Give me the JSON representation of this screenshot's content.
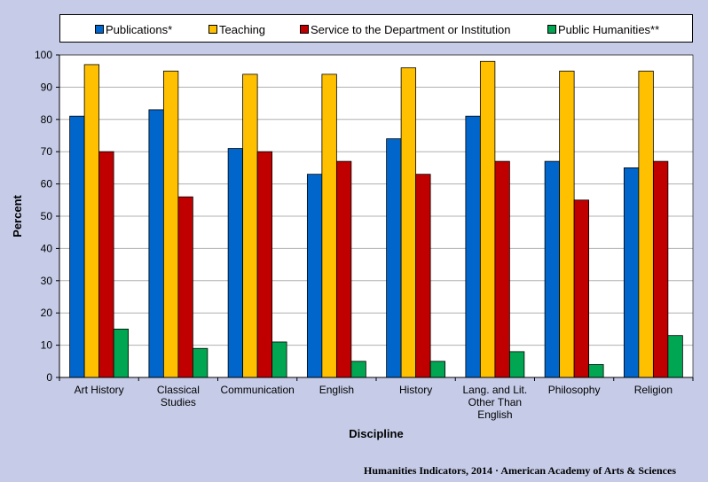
{
  "chart_data": {
    "type": "bar",
    "categories": [
      [
        "Art History"
      ],
      [
        "Classical",
        "Studies"
      ],
      [
        "Communication"
      ],
      [
        "English"
      ],
      [
        "History"
      ],
      [
        "Lang. and Lit.",
        "Other Than",
        "English"
      ],
      [
        "Philosophy"
      ],
      [
        "Religion"
      ]
    ],
    "series": [
      {
        "name": "Publications*",
        "color": "#0066cc",
        "values": [
          81,
          83,
          71,
          63,
          74,
          81,
          67,
          65
        ]
      },
      {
        "name": "Teaching",
        "color": "#ffc000",
        "values": [
          97,
          95,
          94,
          94,
          96,
          98,
          95,
          95
        ]
      },
      {
        "name": "Service to the Department or Institution",
        "color": "#c00000",
        "values": [
          70,
          56,
          70,
          67,
          63,
          67,
          55,
          67
        ]
      },
      {
        "name": "Public Humanities**",
        "color": "#00a651",
        "values": [
          15,
          9,
          11,
          5,
          5,
          8,
          4,
          13
        ]
      }
    ],
    "ylim": [
      0,
      100
    ],
    "yticks": [
      0,
      10,
      20,
      30,
      40,
      50,
      60,
      70,
      80,
      90,
      100
    ],
    "xlabel": "Discipline",
    "ylabel": "Percent",
    "legend": "top",
    "grid": true
  },
  "footer": "Humanities Indicators, 2014 · American Academy of Arts & Sciences"
}
